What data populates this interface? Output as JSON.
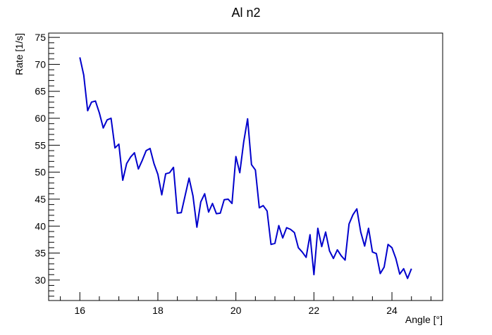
{
  "chart_data": {
    "type": "line",
    "title": "Al n2",
    "xlabel": "Angle [°]",
    "ylabel": "Rate [1/s]",
    "xlim": [
      15.2,
      25.3
    ],
    "ylim": [
      26.2,
      75.8
    ],
    "x_ticks": [
      16,
      18,
      20,
      22,
      24
    ],
    "y_ticks": [
      30,
      35,
      40,
      45,
      50,
      55,
      60,
      65,
      70,
      75
    ],
    "x_tick_labels": [
      "16",
      "18",
      "20",
      "22",
      "24"
    ],
    "y_tick_labels": [
      "30",
      "35",
      "40",
      "45",
      "50",
      "55",
      "60",
      "65",
      "70",
      "75"
    ],
    "grid": false,
    "legend": "none",
    "series": [
      {
        "color": "#0000cc",
        "x": [
          16.0,
          16.1,
          16.2,
          16.3,
          16.4,
          16.5,
          16.6,
          16.7,
          16.8,
          16.9,
          17.0,
          17.1,
          17.2,
          17.3,
          17.4,
          17.5,
          17.6,
          17.7,
          17.8,
          17.9,
          18.0,
          18.1,
          18.2,
          18.3,
          18.4,
          18.5,
          18.6,
          18.7,
          18.8,
          18.9,
          19.0,
          19.1,
          19.2,
          19.3,
          19.4,
          19.5,
          19.6,
          19.7,
          19.8,
          19.9,
          20.0,
          20.1,
          20.2,
          20.3,
          20.4,
          20.5,
          20.6,
          20.7,
          20.8,
          20.9,
          21.0,
          21.1,
          21.2,
          21.3,
          21.4,
          21.5,
          21.6,
          21.7,
          21.8,
          21.9,
          22.0,
          22.1,
          22.2,
          22.3,
          22.4,
          22.5,
          22.6,
          22.7,
          22.8,
          22.9,
          23.0,
          23.1,
          23.2,
          23.3,
          23.4,
          23.5,
          23.6,
          23.7,
          23.8,
          23.9,
          24.0,
          24.1,
          24.2,
          24.3,
          24.4,
          24.5
        ],
        "y": [
          71.3,
          68.0,
          61.4,
          63.0,
          63.2,
          61.0,
          58.2,
          59.7,
          60.0,
          54.5,
          55.2,
          48.5,
          51.6,
          52.8,
          53.6,
          50.6,
          52.2,
          54.0,
          54.4,
          51.6,
          49.6,
          45.8,
          49.7,
          49.9,
          50.9,
          42.4,
          42.5,
          45.7,
          48.9,
          45.6,
          39.8,
          44.5,
          46.0,
          42.6,
          44.2,
          42.3,
          42.4,
          44.9,
          45.0,
          44.2,
          52.9,
          49.9,
          55.6,
          59.9,
          51.4,
          50.4,
          43.4,
          43.8,
          42.8,
          36.6,
          36.8,
          40.1,
          37.8,
          39.7,
          39.4,
          38.8,
          36.0,
          35.2,
          34.2,
          38.4,
          31.0,
          39.6,
          36.2,
          38.9,
          35.4,
          34.0,
          35.6,
          34.5,
          33.7,
          40.4,
          42.1,
          43.2,
          38.9,
          36.3,
          39.6,
          35.2,
          34.9,
          31.2,
          32.4,
          36.6,
          36.0,
          34.0,
          31.1,
          32.1,
          30.3,
          32.1
        ]
      }
    ]
  }
}
